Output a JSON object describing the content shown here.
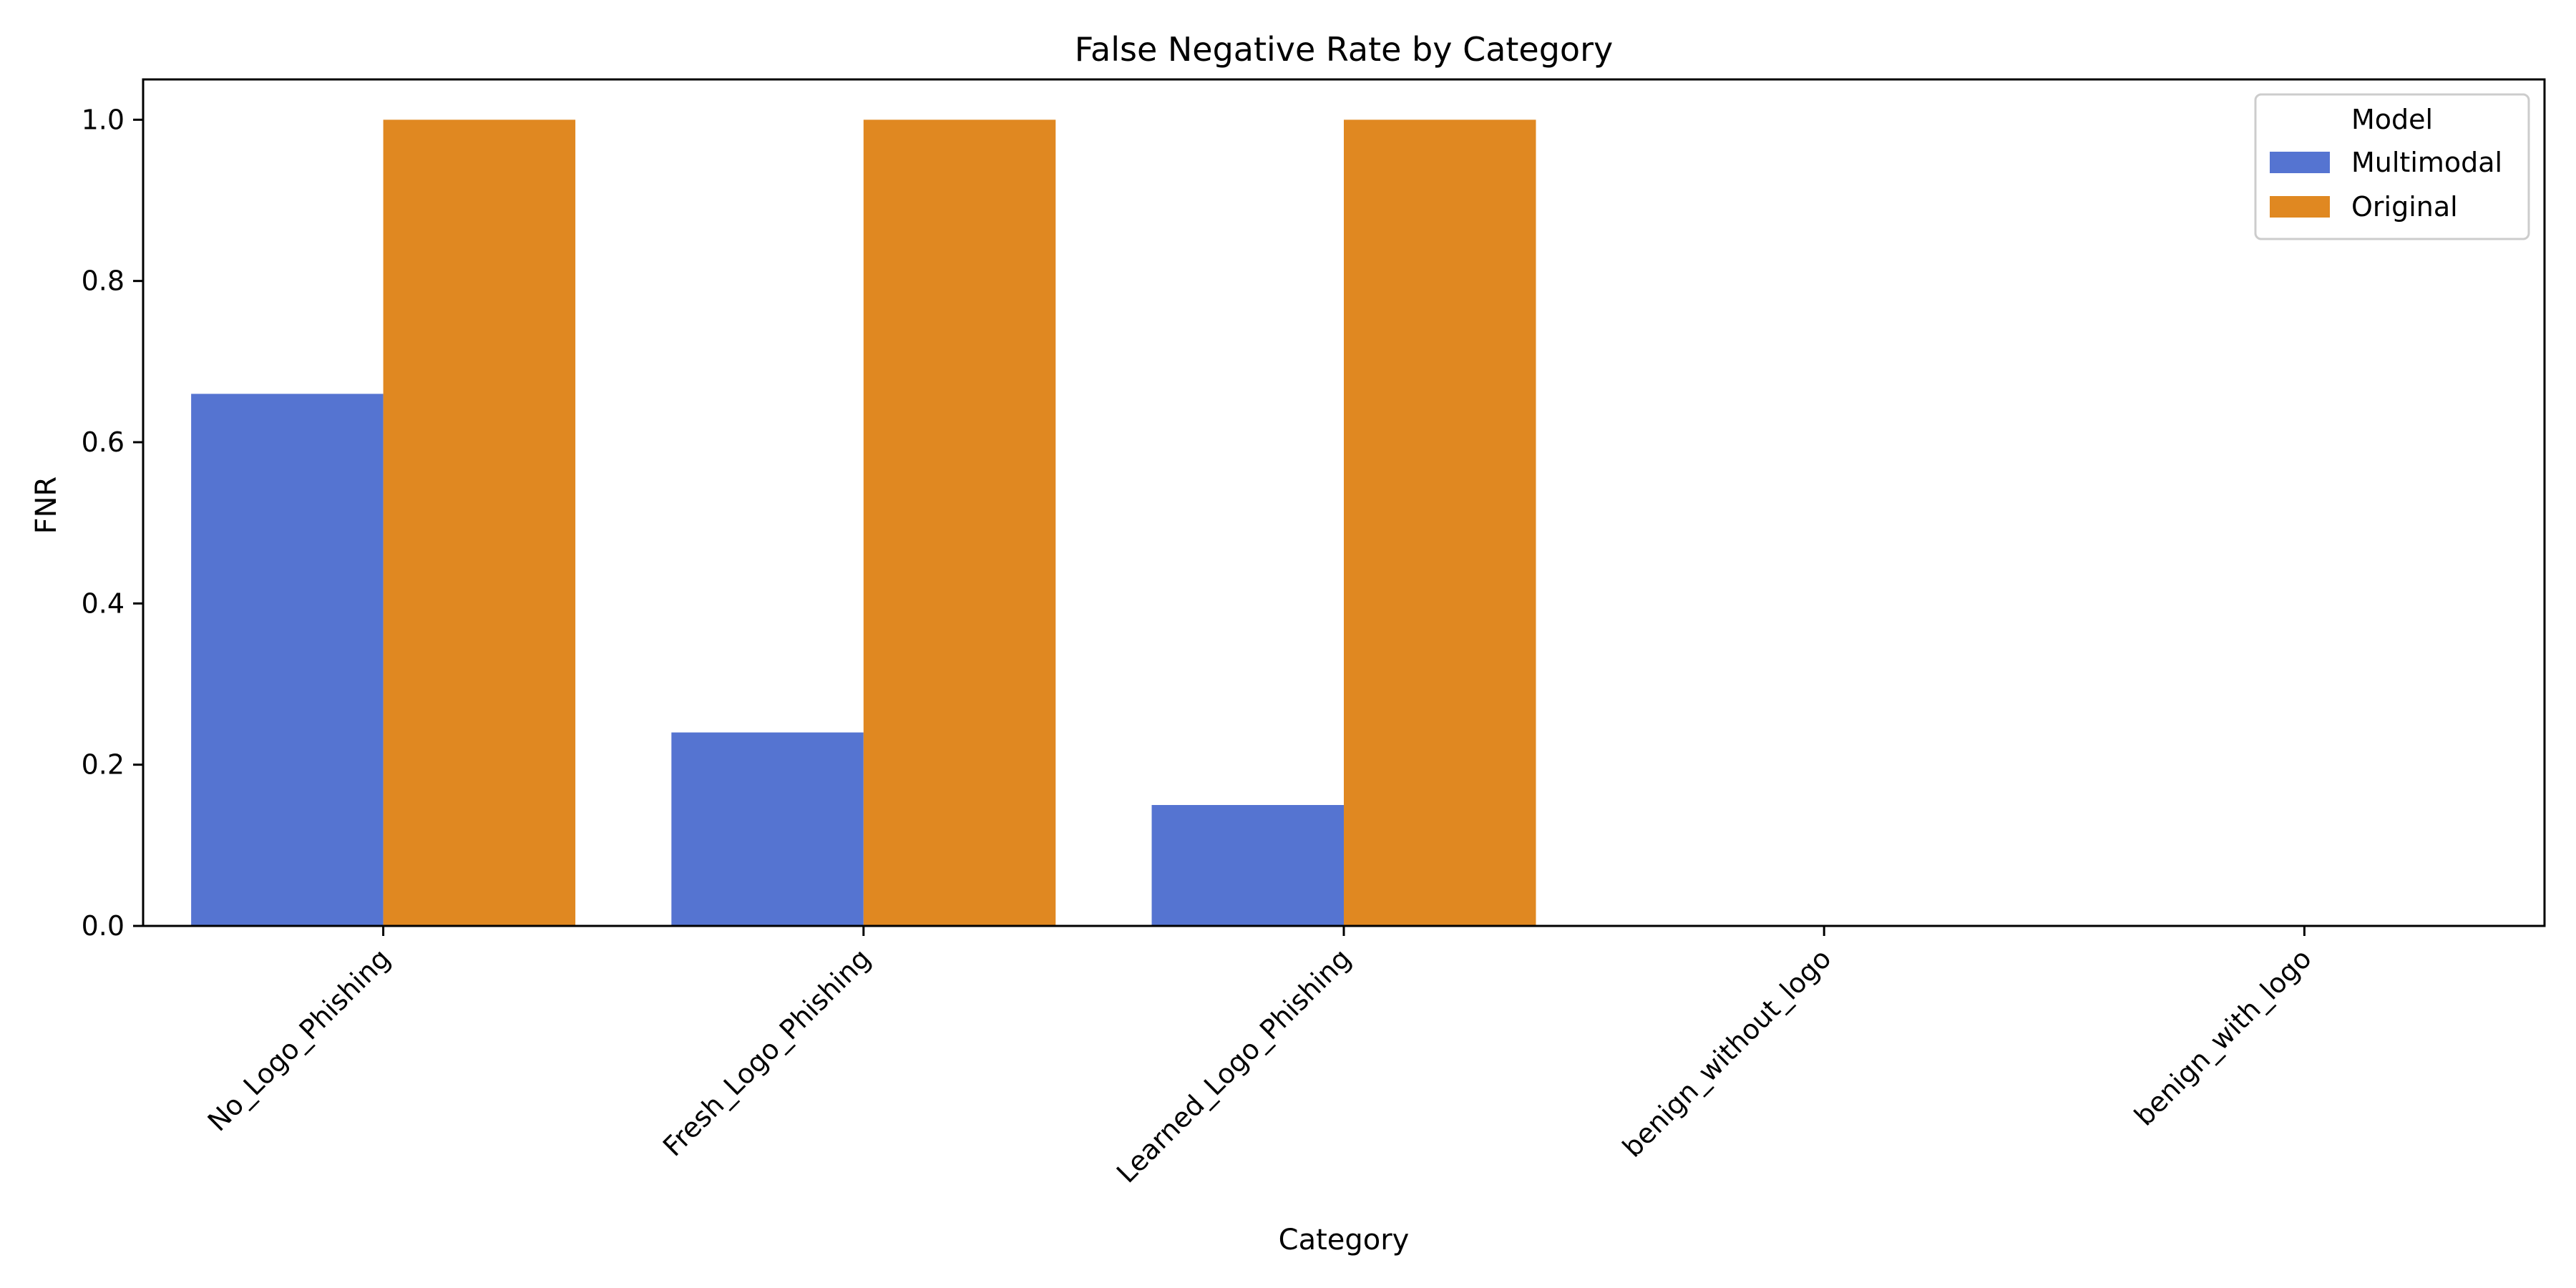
{
  "chart_data": {
    "type": "bar",
    "title": "False Negative Rate by Category",
    "xlabel": "Category",
    "ylabel": "FNR",
    "categories": [
      "No_Logo_Phishing",
      "Fresh_Logo_Phishing",
      "Learned_Logo_Phishing",
      "benign_without_logo",
      "benign_with_logo"
    ],
    "series": [
      {
        "name": "Multimodal",
        "color": "#5574D1",
        "values": [
          0.66,
          0.24,
          0.15,
          0,
          0
        ]
      },
      {
        "name": "Original",
        "color": "#E08821",
        "values": [
          1.0,
          1.0,
          1.0,
          0,
          0
        ]
      }
    ],
    "ylim": [
      0,
      1.05
    ],
    "yticks": [
      0.0,
      0.2,
      0.4,
      0.6,
      0.8,
      1.0
    ],
    "ytick_labels": [
      "0.0",
      "0.2",
      "0.4",
      "0.6",
      "0.8",
      "1.0"
    ],
    "legend": {
      "title": "Model",
      "placement": "top-right"
    },
    "grid": false
  }
}
